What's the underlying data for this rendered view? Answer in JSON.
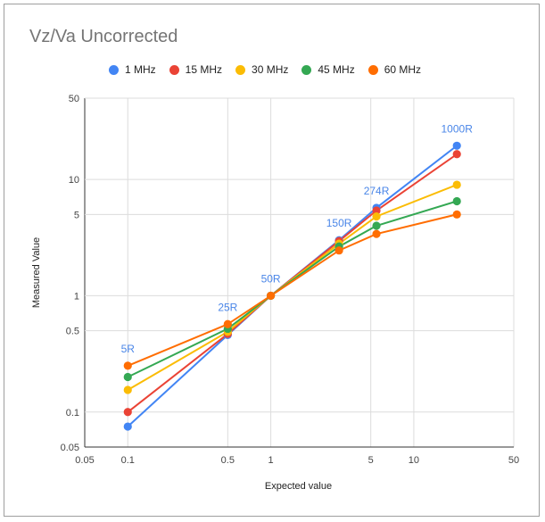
{
  "chart_data": {
    "type": "line",
    "title": "Vz/Va Uncorrected",
    "xlabel": "Expected value",
    "ylabel": "Measured Value",
    "x_scale": "log",
    "y_scale": "log",
    "xlim": [
      0.05,
      50
    ],
    "ylim": [
      0.05,
      50
    ],
    "grid": true,
    "legend_position": "top",
    "x_ticks": [
      {
        "value": 0.05,
        "label": "0.05"
      },
      {
        "value": 0.1,
        "label": "0.1"
      },
      {
        "value": 0.5,
        "label": "0.5"
      },
      {
        "value": 1,
        "label": "1"
      },
      {
        "value": 5,
        "label": "5"
      },
      {
        "value": 10,
        "label": "10"
      },
      {
        "value": 50,
        "label": "50"
      }
    ],
    "y_ticks": [
      {
        "value": 0.05,
        "label": "0.05"
      },
      {
        "value": 0.1,
        "label": "0.1"
      },
      {
        "value": 0.5,
        "label": "0.5"
      },
      {
        "value": 1,
        "label": "1"
      },
      {
        "value": 5,
        "label": "5"
      },
      {
        "value": 10,
        "label": "10"
      },
      {
        "value": 50,
        "label": "50"
      }
    ],
    "x": [
      0.1,
      0.5,
      1,
      3,
      5.48,
      20
    ],
    "point_labels": [
      "5R",
      "25R",
      "50R",
      "150R",
      "274R",
      "1000R"
    ],
    "point_label_color": "#4a86e8",
    "series": [
      {
        "name": "1 MHz",
        "color": "#4285f4",
        "values": [
          0.075,
          0.46,
          1.0,
          3.0,
          5.7,
          19.5
        ]
      },
      {
        "name": "15 MHz",
        "color": "#ea4335",
        "values": [
          0.1,
          0.47,
          1.0,
          2.95,
          5.4,
          16.5
        ]
      },
      {
        "name": "30 MHz",
        "color": "#fbbc04",
        "values": [
          0.155,
          0.49,
          1.0,
          2.8,
          4.8,
          9.0
        ]
      },
      {
        "name": "45 MHz",
        "color": "#34a853",
        "values": [
          0.2,
          0.52,
          1.0,
          2.65,
          4.0,
          6.5
        ]
      },
      {
        "name": "60 MHz",
        "color": "#ff6d01",
        "values": [
          0.25,
          0.57,
          1.0,
          2.45,
          3.4,
          5.0
        ]
      }
    ]
  }
}
